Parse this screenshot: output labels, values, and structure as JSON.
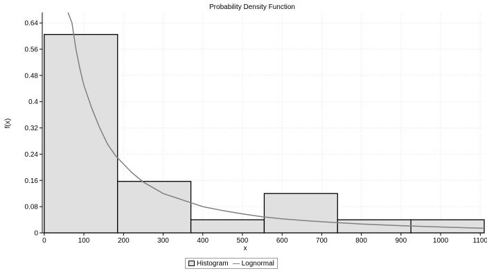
{
  "chart_data": {
    "type": "bar",
    "title": "Probability Density Function",
    "xlabel": "x",
    "ylabel": "f(x)",
    "xlim": [
      -5,
      1110
    ],
    "ylim": [
      0,
      0.672
    ],
    "grid": true,
    "legend_position": "bottom",
    "x_ticks": [
      0,
      100,
      200,
      300,
      400,
      500,
      600,
      700,
      800,
      900,
      1000,
      1100
    ],
    "y_ticks": [
      0,
      0.08,
      0.16,
      0.24,
      0.32,
      0.4,
      0.48,
      0.56,
      0.64
    ],
    "y_tick_labels": [
      "0",
      "0.08",
      "0.16",
      "0.24",
      "0.32",
      "0.4",
      "0.48",
      "0.56",
      "0.64"
    ],
    "histogram": {
      "name": "Histogram",
      "bins": [
        {
          "x0": 0,
          "x1": 185,
          "value": 0.605
        },
        {
          "x0": 185,
          "x1": 370,
          "value": 0.157
        },
        {
          "x0": 370,
          "x1": 555,
          "value": 0.04
        },
        {
          "x0": 555,
          "x1": 740,
          "value": 0.12
        },
        {
          "x0": 740,
          "x1": 925,
          "value": 0.04
        },
        {
          "x0": 925,
          "x1": 1110,
          "value": 0.04
        }
      ],
      "color": "#e0e0e0"
    },
    "curve": {
      "name": "Lognormal",
      "color": "#808080",
      "points": [
        [
          60,
          0.672
        ],
        [
          70,
          0.64
        ],
        [
          80,
          0.56
        ],
        [
          90,
          0.5
        ],
        [
          100,
          0.45
        ],
        [
          120,
          0.38
        ],
        [
          140,
          0.32
        ],
        [
          160,
          0.27
        ],
        [
          180,
          0.235
        ],
        [
          200,
          0.21
        ],
        [
          220,
          0.185
        ],
        [
          250,
          0.155
        ],
        [
          300,
          0.12
        ],
        [
          350,
          0.1
        ],
        [
          400,
          0.08
        ],
        [
          450,
          0.068
        ],
        [
          500,
          0.058
        ],
        [
          550,
          0.049
        ],
        [
          600,
          0.043
        ],
        [
          650,
          0.038
        ],
        [
          700,
          0.034
        ],
        [
          800,
          0.027
        ],
        [
          900,
          0.022
        ],
        [
          1000,
          0.018
        ],
        [
          1110,
          0.014
        ]
      ]
    }
  },
  "legend": {
    "histogram_label": "Histogram",
    "curve_label": "Lognormal"
  }
}
